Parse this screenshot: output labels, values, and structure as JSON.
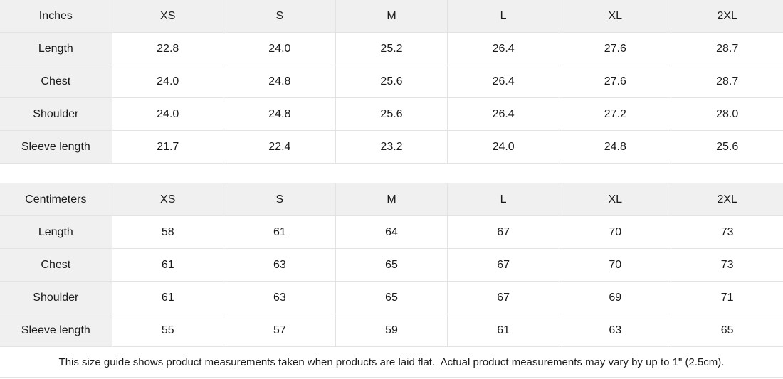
{
  "colors": {
    "page_bg": "#ffffff",
    "cell_bg": "#ffffff",
    "header_bg": "#f0f0f0",
    "border": "#e3e3e3",
    "text": "#1a1a1a"
  },
  "chart_data": [
    {
      "type": "table",
      "unit": "Inches",
      "columns": [
        "Inches",
        "XS",
        "S",
        "M",
        "L",
        "XL",
        "2XL"
      ],
      "rows": [
        {
          "label": "Length",
          "values": [
            "22.8",
            "24.0",
            "25.2",
            "26.4",
            "27.6",
            "28.7"
          ]
        },
        {
          "label": "Chest",
          "values": [
            "24.0",
            "24.8",
            "25.6",
            "26.4",
            "27.6",
            "28.7"
          ]
        },
        {
          "label": "Shoulder",
          "values": [
            "24.0",
            "24.8",
            "25.6",
            "26.4",
            "27.2",
            "28.0"
          ]
        },
        {
          "label": "Sleeve length",
          "values": [
            "21.7",
            "22.4",
            "23.2",
            "24.0",
            "24.8",
            "25.6"
          ]
        }
      ]
    },
    {
      "type": "table",
      "unit": "Centimeters",
      "columns": [
        "Centimeters",
        "XS",
        "S",
        "M",
        "L",
        "XL",
        "2XL"
      ],
      "rows": [
        {
          "label": "Length",
          "values": [
            "58",
            "61",
            "64",
            "67",
            "70",
            "73"
          ]
        },
        {
          "label": "Chest",
          "values": [
            "61",
            "63",
            "65",
            "67",
            "70",
            "73"
          ]
        },
        {
          "label": "Shoulder",
          "values": [
            "61",
            "63",
            "65",
            "67",
            "69",
            "71"
          ]
        },
        {
          "label": "Sleeve length",
          "values": [
            "55",
            "57",
            "59",
            "61",
            "63",
            "65"
          ]
        }
      ]
    }
  ],
  "footer": {
    "note": "This size guide shows product measurements taken when products are laid flat.  Actual product measurements may vary by up to 1\" (2.5cm)."
  }
}
